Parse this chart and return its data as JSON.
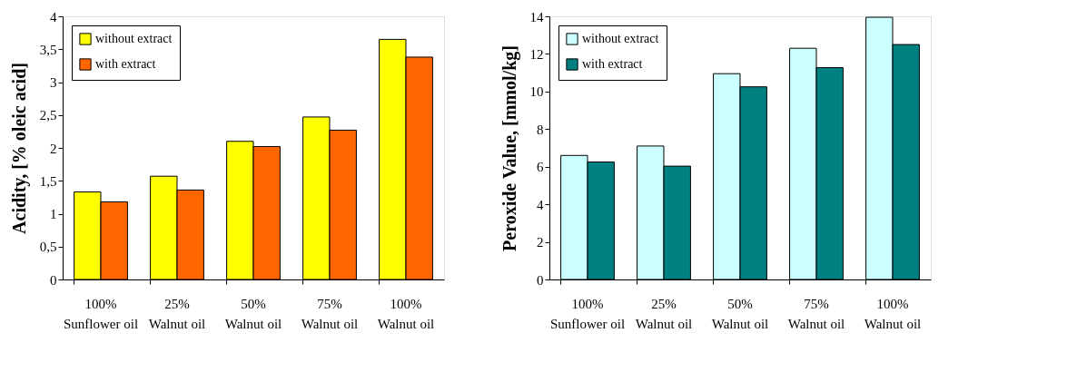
{
  "chart_data": [
    {
      "type": "bar",
      "ylabel": "Acidity, [% oleic acid]",
      "categories": [
        "100% Sunflower oil",
        "25% Walnut oil",
        "50% Walnut oil",
        "75% Walnut oil",
        "100% Walnut oil"
      ],
      "series": [
        {
          "name": "without extract",
          "color": "#ffff00",
          "values": [
            1.33,
            1.57,
            2.1,
            2.47,
            3.65
          ]
        },
        {
          "name": "with extract",
          "color": "#ff6600",
          "values": [
            1.18,
            1.36,
            2.02,
            2.27,
            3.38
          ]
        }
      ],
      "ylim": [
        0,
        4
      ],
      "yticks": [
        0,
        {
          "value": 0.5,
          "label": "0,5"
        },
        1,
        {
          "value": 1.5,
          "label": "1,5"
        },
        2,
        {
          "value": 2.5,
          "label": "2,5"
        },
        3,
        {
          "value": 3.5,
          "label": "3,5"
        },
        4
      ],
      "grid": false,
      "legend": "top left"
    },
    {
      "type": "bar",
      "ylabel": "Peroxide Value, [mmol/kg]",
      "categories": [
        "100% Sunflower oil",
        "25% Walnut oil",
        "50% Walnut oil",
        "75% Walnut oil",
        "100% Walnut oil"
      ],
      "series": [
        {
          "name": "without extract",
          "color": "#ccffff",
          "values": [
            6.6,
            7.1,
            10.95,
            12.3,
            13.95
          ]
        },
        {
          "name": "with extract",
          "color": "#008080",
          "values": [
            6.25,
            6.03,
            10.25,
            11.27,
            12.5
          ]
        }
      ],
      "ylim": [
        0,
        14
      ],
      "yticks": [
        0,
        2,
        4,
        6,
        8,
        10,
        12,
        14
      ],
      "grid": false,
      "legend": "top left"
    }
  ]
}
